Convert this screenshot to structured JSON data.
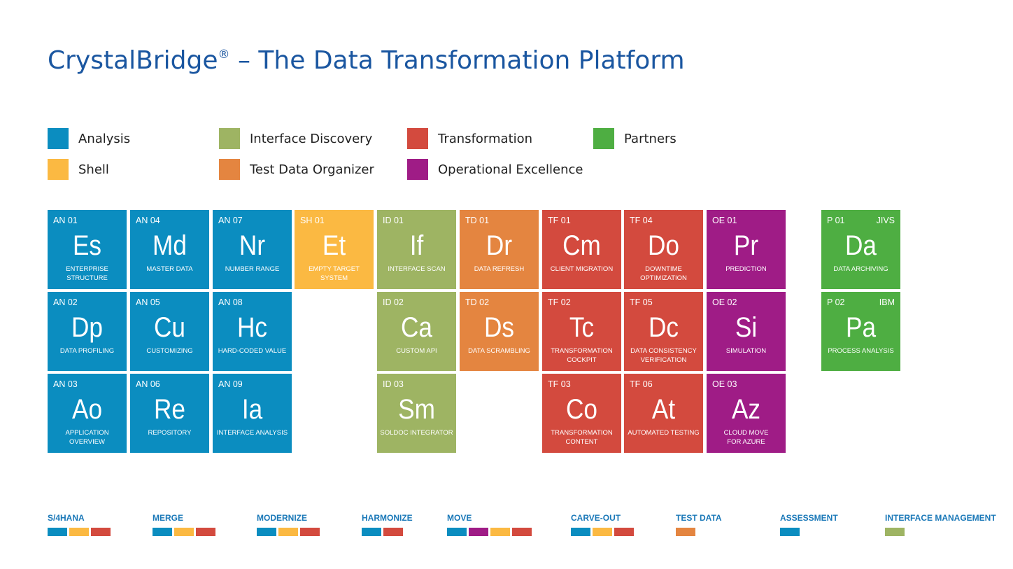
{
  "title": {
    "main": "CrystalBridge",
    "sup": "®",
    "rest": " – The Data Transformation Platform"
  },
  "colors": {
    "analysis": "#0b8dc0",
    "shell": "#fbb942",
    "interface_discovery": "#9eb463",
    "test_data_organizer": "#e48540",
    "transformation": "#d34a3e",
    "operational_excellence": "#9f1c86",
    "partners": "#4eae42"
  },
  "legend": [
    {
      "label": "Analysis",
      "color": "#0b8dc0"
    },
    {
      "label": "Shell",
      "color": "#fbb942"
    },
    {
      "label": "Interface Discovery",
      "color": "#9eb463"
    },
    {
      "label": "Test Data Organizer",
      "color": "#e48540"
    },
    {
      "label": "Transformation",
      "color": "#d34a3e"
    },
    {
      "label": "Operational Excellence",
      "color": "#9f1c86"
    },
    {
      "label": "Partners",
      "color": "#4eae42"
    }
  ],
  "tiles": [
    {
      "code": "AN 01",
      "symbol": "Es",
      "name": "ENTERPRISE\nSTRUCTURE",
      "category": "analysis"
    },
    {
      "code": "AN 04",
      "symbol": "Md",
      "name": "MASTER DATA",
      "category": "analysis"
    },
    {
      "code": "AN 07",
      "symbol": "Nr",
      "name": "NUMBER RANGE",
      "category": "analysis"
    },
    {
      "code": "SH 01",
      "symbol": "Et",
      "name": "EMPTY TARGET\nSYSTEM",
      "category": "shell"
    },
    {
      "code": "ID 01",
      "symbol": "If",
      "name": "INTERFACE SCAN",
      "category": "interface_discovery"
    },
    {
      "code": "TD 01",
      "symbol": "Dr",
      "name": "DATA REFRESH",
      "category": "test_data_organizer"
    },
    {
      "code": "TF 01",
      "symbol": "Cm",
      "name": "CLIENT MIGRATION",
      "category": "transformation"
    },
    {
      "code": "TF 04",
      "symbol": "Do",
      "name": "DOWNTIME\nOPTIMIZATION",
      "category": "transformation"
    },
    {
      "code": "OE 01",
      "symbol": "Pr",
      "name": "PREDICTION",
      "category": "operational_excellence"
    },
    {
      "code": "P 01",
      "partner": "JIVS",
      "symbol": "Da",
      "name": "DATA ARCHIVING",
      "category": "partners"
    },
    {
      "code": "AN 02",
      "symbol": "Dp",
      "name": "DATA PROFILING",
      "category": "analysis"
    },
    {
      "code": "AN 05",
      "symbol": "Cu",
      "name": "CUSTOMIZING",
      "category": "analysis"
    },
    {
      "code": "AN 08",
      "symbol": "Hc",
      "name": "HARD-CODED VALUE",
      "category": "analysis"
    },
    {
      "code": "ID 02",
      "symbol": "Ca",
      "name": "CUSTOM API",
      "category": "interface_discovery"
    },
    {
      "code": "TD 02",
      "symbol": "Ds",
      "name": "DATA SCRAMBLING",
      "category": "test_data_organizer"
    },
    {
      "code": "TF 02",
      "symbol": "Tc",
      "name": "TRANSFORMATION\nCOCKPIT",
      "category": "transformation"
    },
    {
      "code": "TF 05",
      "symbol": "Dc",
      "name": "DATA CONSISTENCY\nVERIFICATION",
      "category": "transformation"
    },
    {
      "code": "OE 02",
      "symbol": "Si",
      "name": "SIMULATION",
      "category": "operational_excellence"
    },
    {
      "code": "P 02",
      "partner": "IBM",
      "symbol": "Pa",
      "name": "PROCESS ANALYSIS",
      "category": "partners"
    },
    {
      "code": "AN 03",
      "symbol": "Ao",
      "name": "APPLICATION\nOVERVIEW",
      "category": "analysis"
    },
    {
      "code": "AN 06",
      "symbol": "Re",
      "name": "REPOSITORY",
      "category": "analysis"
    },
    {
      "code": "AN 09",
      "symbol": "Ia",
      "name": "INTERFACE ANALYSIS",
      "category": "analysis"
    },
    {
      "code": "ID 03",
      "symbol": "Sm",
      "name": "SOLDOC INTEGRATOR",
      "category": "interface_discovery"
    },
    {
      "code": "TF 03",
      "symbol": "Co",
      "name": "TRANSFORMATION\nCONTENT",
      "category": "transformation"
    },
    {
      "code": "TF 06",
      "symbol": "At",
      "name": "AUTOMATED TESTING",
      "category": "transformation"
    },
    {
      "code": "OE 03",
      "symbol": "Az",
      "name": "CLOUD MOVE\nFOR AZURE",
      "category": "operational_excellence"
    }
  ],
  "scenarios": [
    {
      "label": "S/4HANA",
      "colors": [
        "#0b8dc0",
        "#fbb942",
        "#d34a3e"
      ]
    },
    {
      "label": "MERGE",
      "colors": [
        "#0b8dc0",
        "#fbb942",
        "#d34a3e"
      ]
    },
    {
      "label": "MODERNIZE",
      "colors": [
        "#0b8dc0",
        "#fbb942",
        "#d34a3e"
      ]
    },
    {
      "label": "HARMONIZE",
      "colors": [
        "#0b8dc0",
        "#d34a3e"
      ]
    },
    {
      "label": "MOVE",
      "colors": [
        "#0b8dc0",
        "#9f1c86",
        "#fbb942",
        "#d34a3e"
      ]
    },
    {
      "label": "CARVE-OUT",
      "colors": [
        "#0b8dc0",
        "#fbb942",
        "#d34a3e"
      ]
    },
    {
      "label": "TEST DATA",
      "colors": [
        "#e48540"
      ]
    },
    {
      "label": "ASSESSMENT",
      "colors": [
        "#0b8dc0"
      ]
    },
    {
      "label": "INTERFACE MANAGEMENT",
      "colors": [
        "#9eb463"
      ]
    }
  ]
}
